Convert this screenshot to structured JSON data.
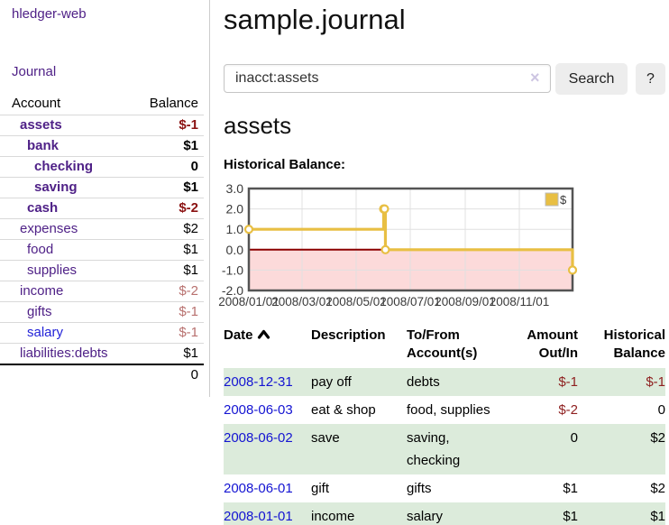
{
  "app": {
    "brand": "hledger-web",
    "nav_journal": "Journal"
  },
  "sidebar": {
    "columns": {
      "account": "Account",
      "balance": "Balance"
    },
    "accounts": [
      {
        "name": "assets",
        "depth": 0,
        "balance": "$-1",
        "bold": true,
        "balance_style": "neg-strong",
        "link_style": "purple"
      },
      {
        "name": "bank",
        "depth": 1,
        "balance": "$1",
        "bold": true,
        "balance_style": "normal",
        "link_style": "purple"
      },
      {
        "name": "checking",
        "depth": 2,
        "balance": "0",
        "bold": true,
        "balance_style": "normal",
        "link_style": "purple"
      },
      {
        "name": "saving",
        "depth": 2,
        "balance": "$1",
        "bold": true,
        "balance_style": "normal",
        "link_style": "purple"
      },
      {
        "name": "cash",
        "depth": 1,
        "balance": "$-2",
        "bold": true,
        "balance_style": "neg-strong",
        "link_style": "purple"
      },
      {
        "name": "expenses",
        "depth": 0,
        "balance": "$2",
        "bold": false,
        "balance_style": "normal",
        "link_style": "purple"
      },
      {
        "name": "food",
        "depth": 1,
        "balance": "$1",
        "bold": false,
        "balance_style": "normal",
        "link_style": "purple"
      },
      {
        "name": "supplies",
        "depth": 1,
        "balance": "$1",
        "bold": false,
        "balance_style": "normal",
        "link_style": "purple"
      },
      {
        "name": "income",
        "depth": 0,
        "balance": "$-2",
        "bold": false,
        "balance_style": "neg-muted",
        "link_style": "purple"
      },
      {
        "name": "gifts",
        "depth": 1,
        "balance": "$-1",
        "bold": false,
        "balance_style": "neg-muted",
        "link_style": "purple"
      },
      {
        "name": "salary",
        "depth": 1,
        "balance": "$-1",
        "bold": false,
        "balance_style": "neg-muted",
        "link_style": "blue"
      },
      {
        "name": "liabilities:debts",
        "depth": 0,
        "balance": "$1",
        "bold": false,
        "balance_style": "normal",
        "link_style": "purple"
      }
    ],
    "total": "0"
  },
  "header": {
    "title": "sample.journal"
  },
  "search": {
    "value": "inacct:assets",
    "clear_icon": "×",
    "button_label": "Search",
    "help_label": "?"
  },
  "account_page": {
    "title": "assets",
    "chart_label": "Historical Balance:"
  },
  "chart_data": {
    "type": "line",
    "title": "Historical Balance",
    "step": true,
    "ylim": [
      -2,
      3
    ],
    "xlim_days": [
      0,
      365
    ],
    "y_ticks": [
      "3.0",
      "2.0",
      "1.0",
      "0.0",
      "-1.0",
      "-2.0"
    ],
    "y_tick_values": [
      3,
      2,
      1,
      0,
      -1,
      -2
    ],
    "x_ticks": [
      "2008/01/01",
      "2008/03/01",
      "2008/05/01",
      "2008/07/01",
      "2008/09/01",
      "2008/11/01"
    ],
    "x_tick_days": [
      0,
      60,
      121,
      182,
      244,
      305
    ],
    "series": [
      {
        "name": "$",
        "color": "#e8bf43",
        "points": [
          {
            "date": "2008-01-01",
            "day": 0,
            "value": 1
          },
          {
            "date": "2008-06-01",
            "day": 152,
            "value": 2
          },
          {
            "date": "2008-06-02",
            "day": 153,
            "value": 2
          },
          {
            "date": "2008-06-03",
            "day": 154,
            "value": 0
          },
          {
            "date": "2008-12-31",
            "day": 365,
            "value": -1
          }
        ]
      }
    ],
    "negative_region": {
      "from": -2,
      "to": 0,
      "fill": "#fcdada",
      "line_color": "#8b0000"
    },
    "grid_color": "#e0e0e0",
    "border_color": "#545454",
    "legend": {
      "label": "$",
      "position": "top-right"
    }
  },
  "register": {
    "columns": {
      "date": "Date",
      "description": "Description",
      "accounts_line1": "To/From",
      "accounts_line2": "Account(s)",
      "amount_line1": "Amount",
      "amount_line2": "Out/In",
      "balance_line1": "Historical",
      "balance_line2": "Balance"
    },
    "sort": {
      "column": "date",
      "direction": "ascending"
    },
    "rows": [
      {
        "date": "2008-12-31",
        "description": "pay off",
        "accounts": "debts",
        "amount": "$-1",
        "balance": "$-1",
        "amount_negative": true,
        "balance_negative": true
      },
      {
        "date": "2008-06-03",
        "description": "eat & shop",
        "accounts": "food, supplies",
        "amount": "$-2",
        "balance": "0",
        "amount_negative": true,
        "balance_negative": false
      },
      {
        "date": "2008-06-02",
        "description": "save",
        "accounts": "saving, checking",
        "amount": "0",
        "balance": "$2",
        "amount_negative": false,
        "balance_negative": false
      },
      {
        "date": "2008-06-01",
        "description": "gift",
        "accounts": "gifts",
        "amount": "$1",
        "balance": "$2",
        "amount_negative": false,
        "balance_negative": false
      },
      {
        "date": "2008-01-01",
        "description": "income",
        "accounts": "salary",
        "amount": "$1",
        "balance": "$1",
        "amount_negative": false,
        "balance_negative": false
      }
    ]
  },
  "colors": {
    "link_purple": "#4f2187",
    "link_blue": "#2222d8",
    "date_blue": "#1414d2",
    "negative_strong": "#8b1212",
    "negative_muted": "#b8716f",
    "table_negative": "#8e1f1f",
    "row_green": "#dcebdb",
    "series_gold": "#e8bf43",
    "region_pink": "#fcdada",
    "zero_line_red": "#8b0000"
  }
}
